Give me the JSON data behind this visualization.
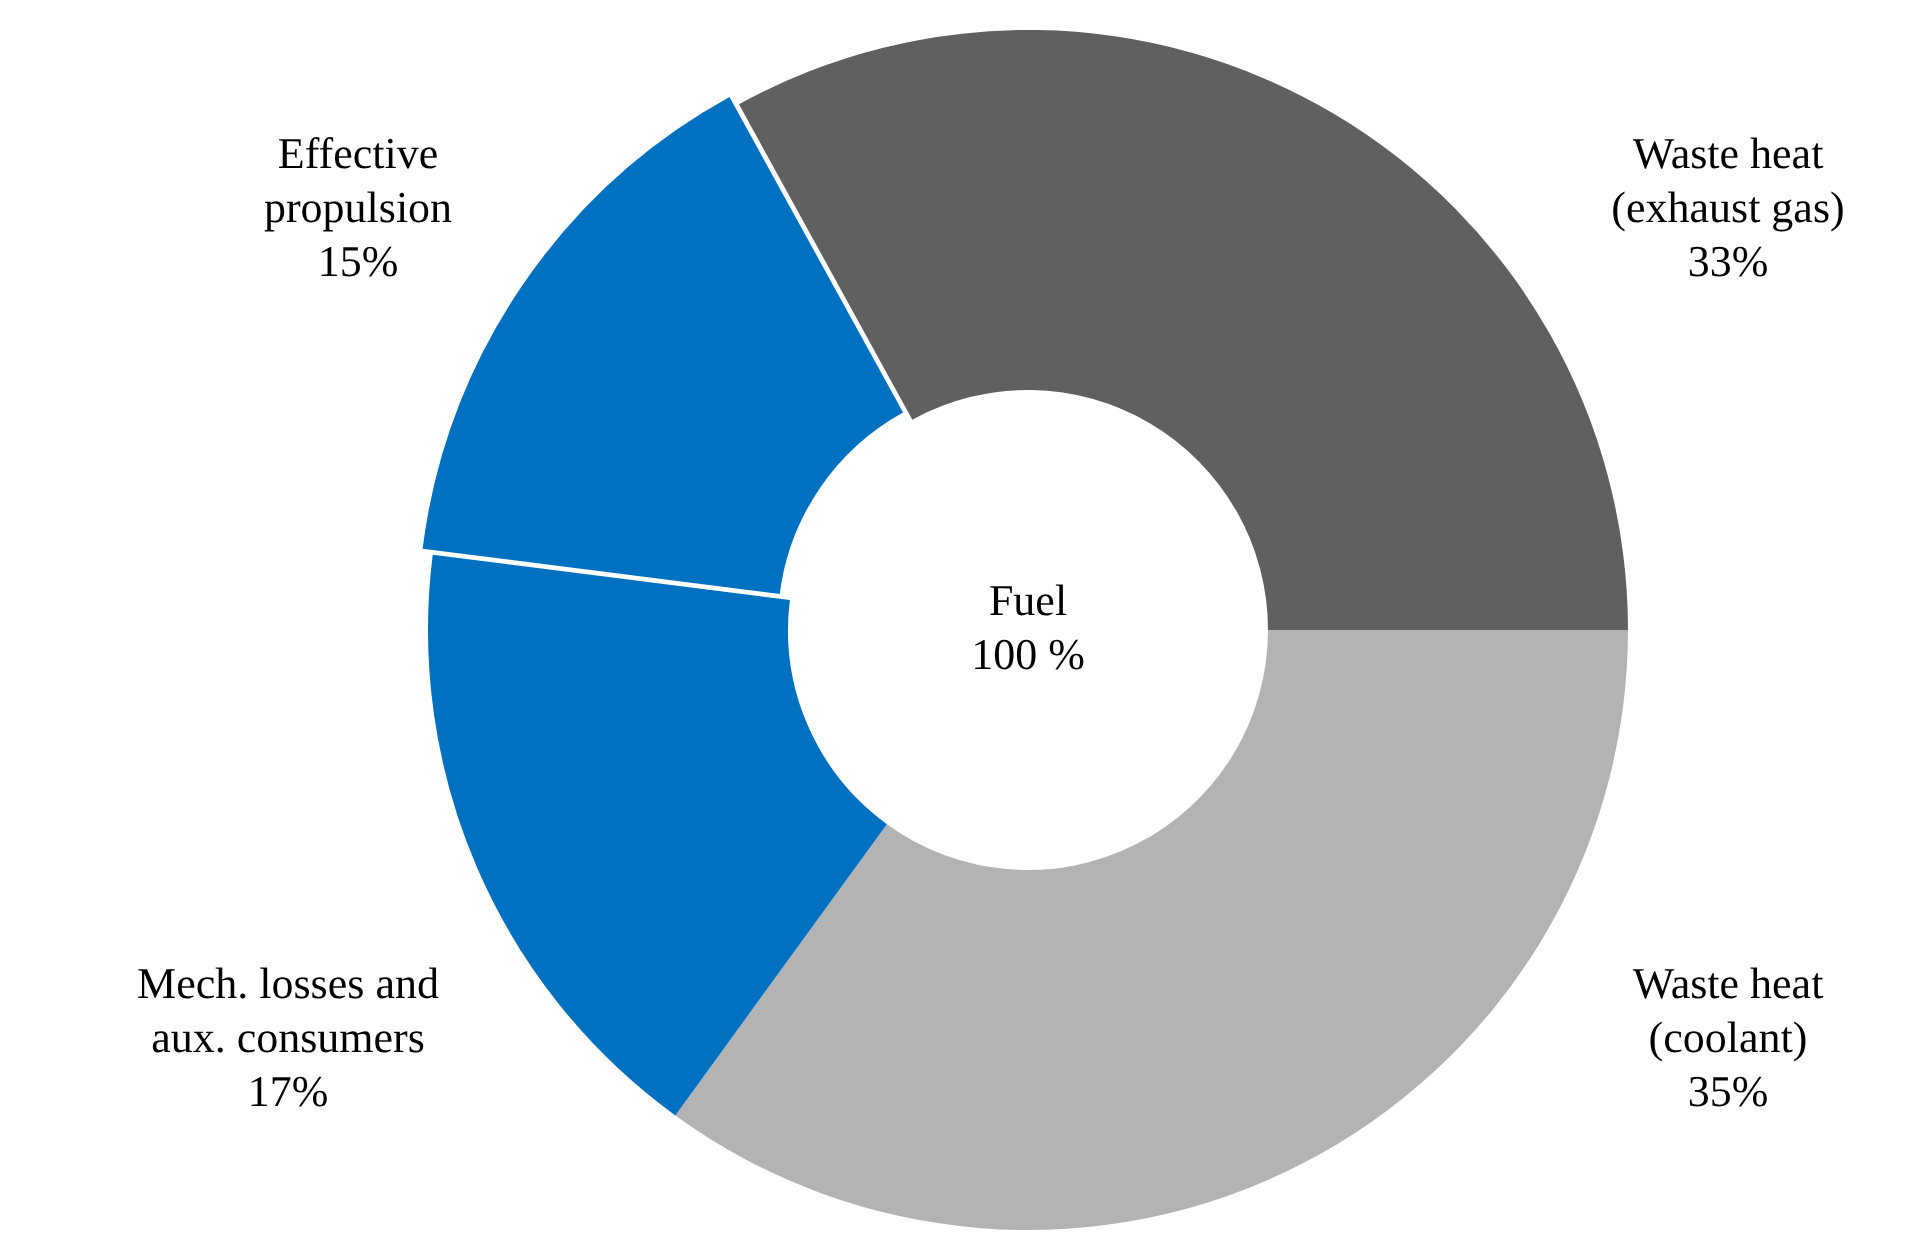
{
  "chart_data": {
    "type": "donut",
    "categories": [
      "Waste heat\n(exhaust gas)",
      "Waste heat\n(coolant)",
      "Mech. losses and\naux. consumers",
      "Effective\npropulsion"
    ],
    "values": [
      33,
      35,
      17,
      15
    ],
    "colors": [
      "#606060",
      "#b3b3b3",
      "#0070c0",
      "#0070c0"
    ],
    "value_labels": [
      "33%",
      "35%",
      "17%",
      "15%"
    ],
    "annotations": [
      "Fuel\n100 %"
    ],
    "legend": false
  }
}
